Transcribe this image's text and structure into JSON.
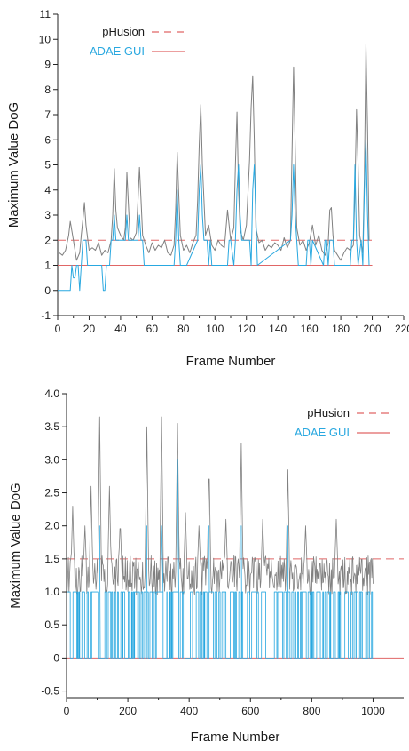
{
  "chart_data": [
    {
      "type": "line",
      "xlabel": "Frame Number",
      "ylabel": "Maximum Value DoG",
      "xlim": [
        0,
        220
      ],
      "ylim": [
        -1,
        11
      ],
      "xticks": [
        "0",
        "20",
        "40",
        "60",
        "80",
        "100",
        "120",
        "140",
        "160",
        "180",
        "200",
        "220"
      ],
      "yticks": [
        "-1",
        "0",
        "1",
        "2",
        "3",
        "4",
        "5",
        "6",
        "7",
        "8",
        "9",
        "10",
        "11"
      ],
      "legend_position": "top-left",
      "grid": false,
      "legend": [
        {
          "name": "pHusion",
          "style": "dashed",
          "color": "#e06666"
        },
        {
          "name": "ADAE GUI",
          "style": "solid",
          "color": "#e06666"
        }
      ],
      "series": [
        {
          "color": "#e06666",
          "style": "dashed",
          "x": [
            0,
            200
          ],
          "y": [
            2,
            2
          ]
        },
        {
          "color": "#e06666",
          "style": "solid",
          "x": [
            0,
            200
          ],
          "y": [
            1,
            1
          ]
        },
        {
          "color": "#808080",
          "style": "solid",
          "x": [
            1,
            3,
            5,
            7,
            8,
            10,
            12,
            14,
            15,
            16,
            17,
            18,
            20,
            22,
            24,
            26,
            28,
            30,
            32,
            34,
            35,
            36,
            37,
            38,
            40,
            42,
            43,
            44,
            45,
            46,
            48,
            50,
            51,
            52,
            53,
            54,
            56,
            58,
            60,
            62,
            64,
            66,
            68,
            70,
            72,
            74,
            75,
            76,
            77,
            78,
            80,
            82,
            84,
            86,
            88,
            89,
            90,
            91,
            92,
            94,
            96,
            98,
            100,
            102,
            104,
            106,
            108,
            110,
            112,
            113,
            114,
            115,
            116,
            118,
            120,
            122,
            123,
            124,
            125,
            126,
            128,
            130,
            132,
            134,
            136,
            138,
            140,
            142,
            144,
            146,
            148,
            149,
            150,
            151,
            152,
            154,
            156,
            158,
            160,
            162,
            164,
            166,
            168,
            170,
            172,
            173,
            174,
            175,
            176,
            178,
            180,
            182,
            184,
            186,
            188,
            189,
            190,
            191,
            192,
            194,
            195,
            196,
            197,
            198
          ],
          "y": [
            1.5,
            1.4,
            1.6,
            2.2,
            2.75,
            2.0,
            1.2,
            1.5,
            2.2,
            2.8,
            3.5,
            2.6,
            1.6,
            1.7,
            1.6,
            1.9,
            1.4,
            1.6,
            1.5,
            2.0,
            3.0,
            4.85,
            3.2,
            2.5,
            2.2,
            2.0,
            2.5,
            4.7,
            3.4,
            2.1,
            2.0,
            2.3,
            3.5,
            4.9,
            3.6,
            2.2,
            1.8,
            1.5,
            1.9,
            1.6,
            1.8,
            1.7,
            2.0,
            1.5,
            1.4,
            1.8,
            3.2,
            5.5,
            3.8,
            2.2,
            1.6,
            1.8,
            1.5,
            1.9,
            2.2,
            3.6,
            5.8,
            7.4,
            5.0,
            2.2,
            2.6,
            1.8,
            1.6,
            2.0,
            1.8,
            1.7,
            3.2,
            2.0,
            2.5,
            5.0,
            7.1,
            4.0,
            2.4,
            2.0,
            2.6,
            5.2,
            7.3,
            8.55,
            6.0,
            2.5,
            1.9,
            2.0,
            1.6,
            1.8,
            1.7,
            1.9,
            1.8,
            1.6,
            2.1,
            1.7,
            2.0,
            5.5,
            8.9,
            5.8,
            2.5,
            1.8,
            2.0,
            1.6,
            1.9,
            2.6,
            1.8,
            2.2,
            1.6,
            1.4,
            1.9,
            3.2,
            3.3,
            2.2,
            1.6,
            1.4,
            1.2,
            1.5,
            1.7,
            1.6,
            1.8,
            4.0,
            7.2,
            5.0,
            2.2,
            1.5,
            4.5,
            9.8,
            6.5,
            2.0
          ]
        },
        {
          "color": "#29a8e0",
          "style": "solid",
          "x": [
            0,
            8,
            9,
            10,
            11,
            12,
            13,
            14,
            15,
            16,
            17,
            18,
            19,
            28,
            29,
            30,
            31,
            32,
            33,
            34,
            35,
            36,
            37,
            38,
            42,
            43,
            44,
            45,
            46,
            50,
            51,
            52,
            53,
            54,
            55,
            74,
            75,
            76,
            77,
            78,
            82,
            89,
            90,
            91,
            92,
            93,
            95,
            96,
            97,
            98,
            108,
            109,
            110,
            112,
            113,
            114,
            115,
            116,
            117,
            122,
            123,
            124,
            125,
            126,
            127,
            148,
            149,
            150,
            151,
            152,
            153,
            158,
            159,
            160,
            161,
            162,
            169,
            170,
            171,
            172,
            173,
            174,
            175,
            176,
            177,
            186,
            187,
            188,
            189,
            190,
            191,
            193,
            194,
            195,
            196,
            197,
            198
          ],
          "y": [
            0,
            0,
            1,
            0.5,
            0.5,
            1,
            1,
            0,
            1,
            2,
            2,
            2,
            1,
            1,
            0,
            0,
            1,
            1,
            1,
            2,
            2,
            3,
            2,
            2,
            2,
            2,
            3,
            2,
            2,
            2,
            2,
            3,
            2,
            2,
            1,
            1,
            2,
            4,
            2,
            1,
            1,
            2,
            4,
            5,
            3,
            2,
            2,
            1,
            2,
            1,
            1,
            2,
            2,
            1,
            2,
            4,
            5,
            3,
            2,
            2,
            1,
            4,
            5,
            3,
            1,
            2,
            3,
            5,
            3,
            2,
            1,
            1,
            2,
            2,
            1,
            2,
            1,
            2,
            2,
            1,
            2,
            2,
            2,
            1,
            1,
            1,
            2,
            2,
            5,
            2,
            1,
            2,
            1,
            4,
            6,
            3,
            1
          ]
        }
      ]
    },
    {
      "type": "line",
      "xlabel": "Frame Number",
      "ylabel": "Maximum Value DoG",
      "xlim": [
        0,
        1100
      ],
      "ylim": [
        -0.6,
        4.0
      ],
      "xticks": [
        "0",
        "200",
        "400",
        "600",
        "800",
        "1000"
      ],
      "yticks": [
        "-0.5",
        "0",
        "0.5",
        "1.0",
        "1.5",
        "2.0",
        "2.5",
        "3.0",
        "3.5",
        "4.0"
      ],
      "legend_position": "top-right",
      "grid": false,
      "legend": [
        {
          "name": "pHusion",
          "style": "dashed",
          "color": "#e06666"
        },
        {
          "name": "ADAE GUI",
          "style": "solid",
          "color": "#e06666"
        }
      ],
      "series": [
        {
          "color": "#e06666",
          "style": "dashed",
          "x": [
            0,
            1100
          ],
          "y": [
            1.5,
            1.5
          ]
        },
        {
          "color": "#e06666",
          "style": "solid",
          "x": [
            0,
            1100
          ],
          "y": [
            0,
            0
          ]
        },
        {
          "color": "#808080",
          "style": "solid",
          "noise": "gray",
          "x_range": [
            0,
            1000
          ],
          "base": 1.25,
          "amplitude": 0.3,
          "peaks": [
            {
              "x": 20,
              "y": 2.3
            },
            {
              "x": 60,
              "y": 2.0
            },
            {
              "x": 80,
              "y": 2.6
            },
            {
              "x": 108,
              "y": 3.65
            },
            {
              "x": 140,
              "y": 2.6
            },
            {
              "x": 175,
              "y": 2.1
            },
            {
              "x": 262,
              "y": 3.5
            },
            {
              "x": 310,
              "y": 3.65
            },
            {
              "x": 362,
              "y": 3.55
            },
            {
              "x": 388,
              "y": 2.2
            },
            {
              "x": 432,
              "y": 2.0
            },
            {
              "x": 465,
              "y": 3.0
            },
            {
              "x": 520,
              "y": 2.1
            },
            {
              "x": 570,
              "y": 3.25
            },
            {
              "x": 640,
              "y": 2.1
            },
            {
              "x": 722,
              "y": 2.85
            },
            {
              "x": 780,
              "y": 2.0
            },
            {
              "x": 880,
              "y": 2.1
            }
          ]
        },
        {
          "color": "#29a8e0",
          "style": "solid",
          "noise": "binary",
          "x_range": [
            0,
            1000
          ],
          "low": 0,
          "high": 1,
          "peaks": [
            {
              "x": 108,
              "y": 2.0
            },
            {
              "x": 262,
              "y": 2.0
            },
            {
              "x": 310,
              "y": 2.0
            },
            {
              "x": 362,
              "y": 3.0
            },
            {
              "x": 465,
              "y": 2.0
            },
            {
              "x": 570,
              "y": 2.0
            },
            {
              "x": 722,
              "y": 2.0
            }
          ]
        }
      ]
    }
  ]
}
